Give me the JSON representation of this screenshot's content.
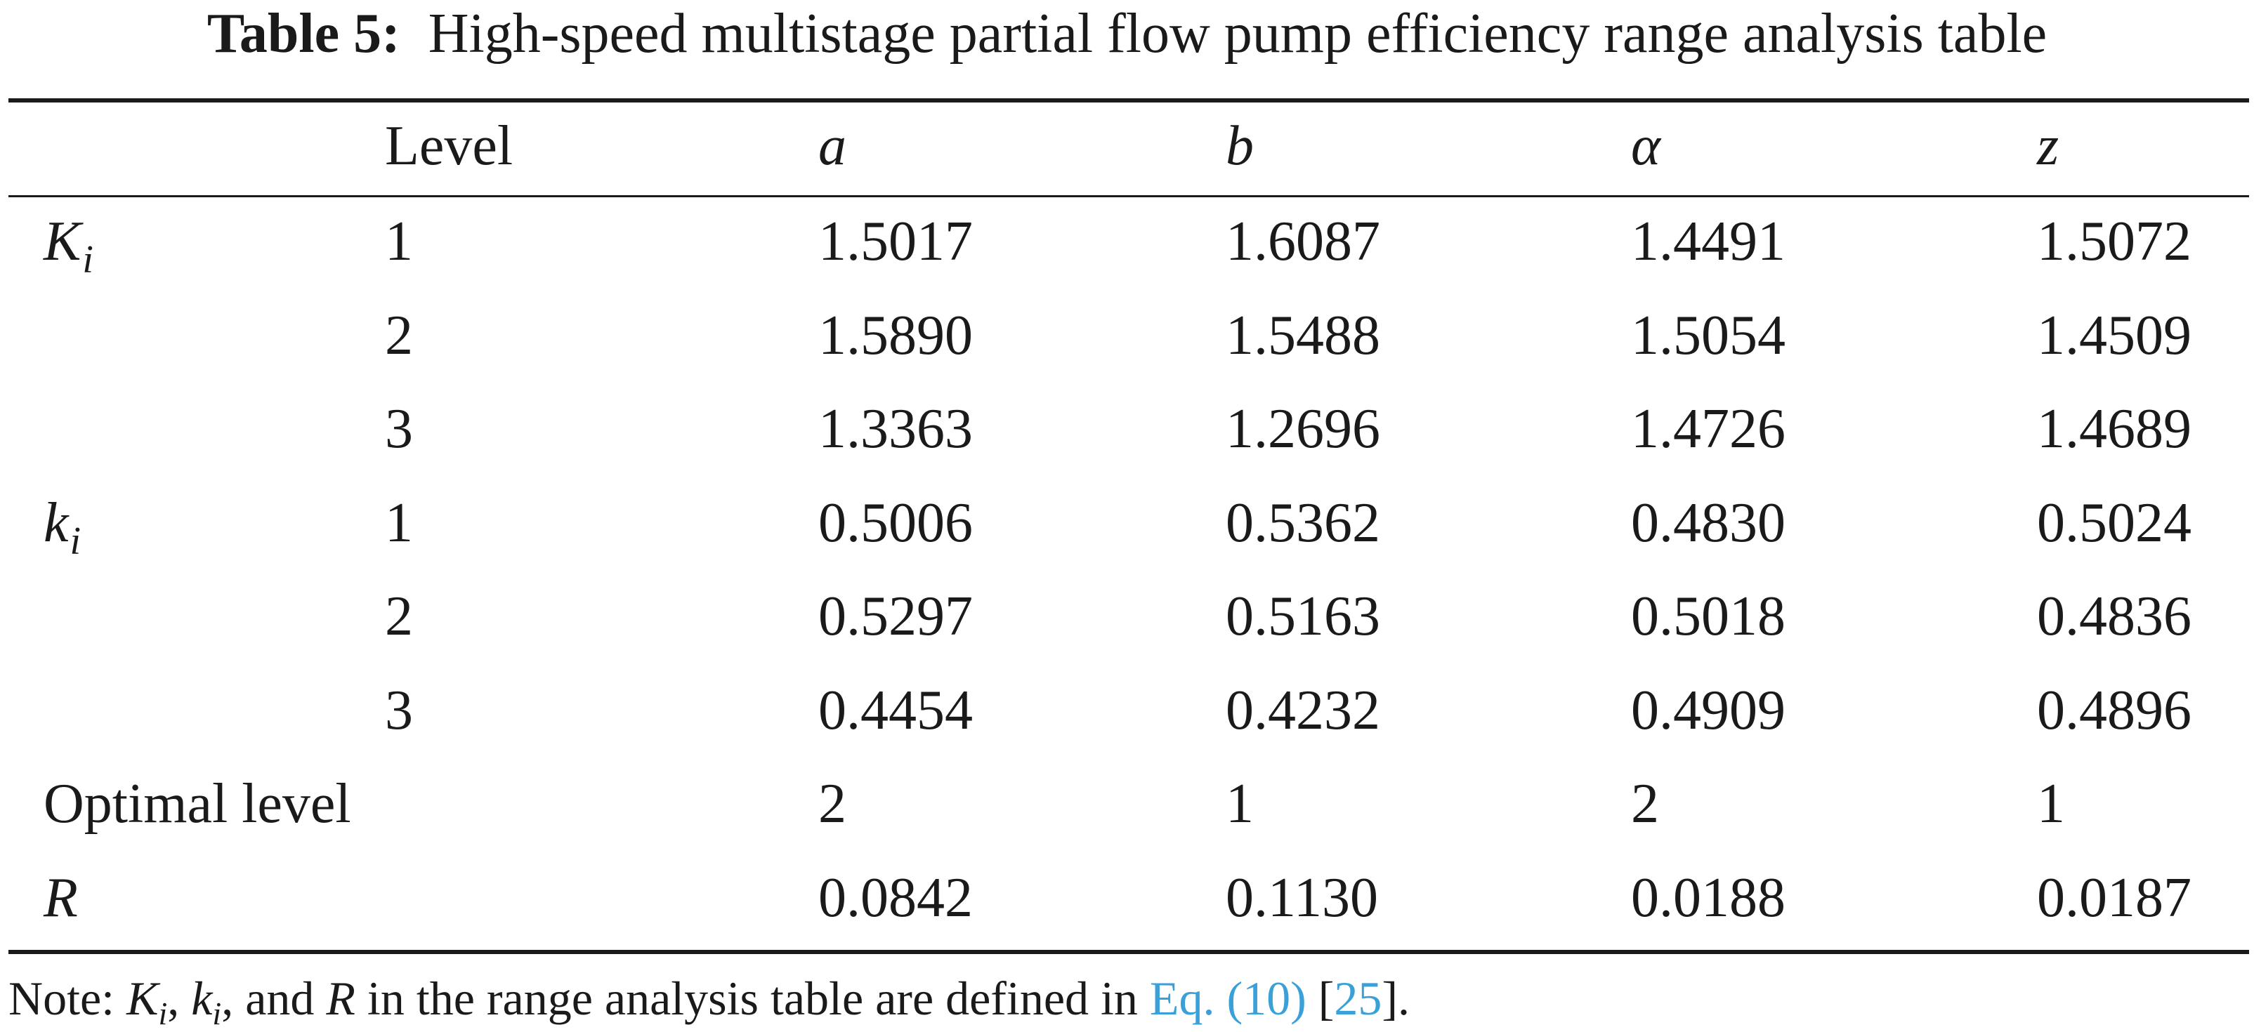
{
  "caption": {
    "label": "Table 5:",
    "text": "High-speed multistage partial flow pump efficiency range analysis table"
  },
  "header": {
    "col0": "",
    "col1": "Level",
    "col2": "a",
    "col3": "b",
    "col4": "α",
    "col5": "z"
  },
  "rows": [
    {
      "group_main": "K",
      "group_sub": "i",
      "level": "1",
      "a": "1.5017",
      "b": "1.6087",
      "alpha": "1.4491",
      "z": "1.5072"
    },
    {
      "group_main": "",
      "group_sub": "",
      "level": "2",
      "a": "1.5890",
      "b": "1.5488",
      "alpha": "1.5054",
      "z": "1.4509"
    },
    {
      "group_main": "",
      "group_sub": "",
      "level": "3",
      "a": "1.3363",
      "b": "1.2696",
      "alpha": "1.4726",
      "z": "1.4689"
    },
    {
      "group_main": "k",
      "group_sub": "i",
      "level": "1",
      "a": "0.5006",
      "b": "0.5362",
      "alpha": "0.4830",
      "z": "0.5024"
    },
    {
      "group_main": "",
      "group_sub": "",
      "level": "2",
      "a": "0.5297",
      "b": "0.5163",
      "alpha": "0.5018",
      "z": "0.4836"
    },
    {
      "group_main": "",
      "group_sub": "",
      "level": "3",
      "a": "0.4454",
      "b": "0.4232",
      "alpha": "0.4909",
      "z": "0.4896"
    }
  ],
  "optimal": {
    "label": "Optimal level",
    "a": "2",
    "b": "1",
    "alpha": "2",
    "z": "1"
  },
  "range": {
    "label": "R",
    "a": "0.0842",
    "b": "0.1130",
    "alpha": "0.0188",
    "z": "0.0187"
  },
  "note": {
    "prefix": "Note: ",
    "k_main": "K",
    "k_sub": "i",
    "sep1": ", ",
    "k2_main": "k",
    "k2_sub": "i",
    "sep2": ", and ",
    "r": "R",
    "middle": " in the range analysis table are defined in ",
    "eq_link": "Eq. (10)",
    "space": " [",
    "ref_link": "25",
    "end": "]."
  }
}
